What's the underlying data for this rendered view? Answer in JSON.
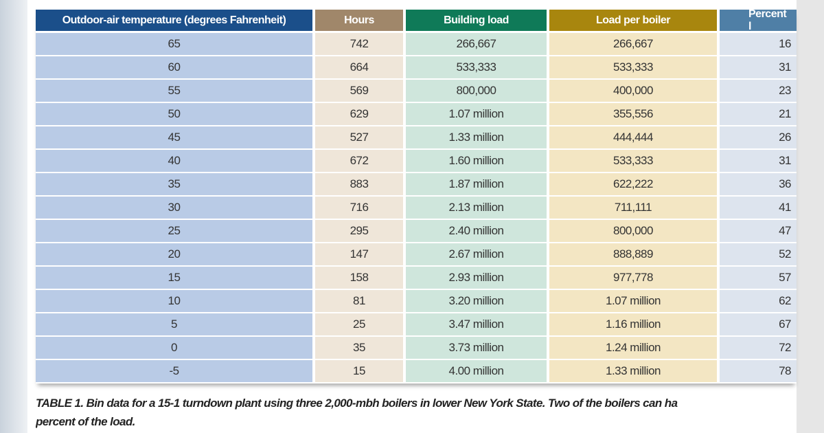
{
  "table": {
    "headers": [
      "Outdoor-air temperature (degrees Fahrenheit)",
      "Hours",
      "Building load",
      "Load per boiler",
      "Percent l"
    ],
    "rows": [
      [
        "65",
        "742",
        "266,667",
        "266,667",
        "16"
      ],
      [
        "60",
        "664",
        "533,333",
        "533,333",
        "31"
      ],
      [
        "55",
        "569",
        "800,000",
        "400,000",
        "23"
      ],
      [
        "50",
        "629",
        "1.07 million",
        "355,556",
        "21"
      ],
      [
        "45",
        "527",
        "1.33 million",
        "444,444",
        "26"
      ],
      [
        "40",
        "672",
        "1.60 million",
        "533,333",
        "31"
      ],
      [
        "35",
        "883",
        "1.87 million",
        "622,222",
        "36"
      ],
      [
        "30",
        "716",
        "2.13 million",
        "711,111",
        "41"
      ],
      [
        "25",
        "295",
        "2.40 million",
        "800,000",
        "47"
      ],
      [
        "20",
        "147",
        "2.67 million",
        "888,889",
        "52"
      ],
      [
        "15",
        "158",
        "2.93 million",
        "977,778",
        "57"
      ],
      [
        "10",
        "81",
        "3.20 million",
        "1.07 million",
        "62"
      ],
      [
        "5",
        "25",
        "3.47 million",
        "1.16 million",
        "67"
      ],
      [
        "0",
        "35",
        "3.73 million",
        "1.24 million",
        "72"
      ],
      [
        "-5",
        "15",
        "4.00 million",
        "1.33 million",
        "78"
      ]
    ]
  },
  "caption": {
    "line1": "TABLE 1. Bin data for a 15-1 turndown plant using three 2,000-mbh boilers in lower New York State. Two of the boilers can ha",
    "line2": "percent of the load."
  }
}
